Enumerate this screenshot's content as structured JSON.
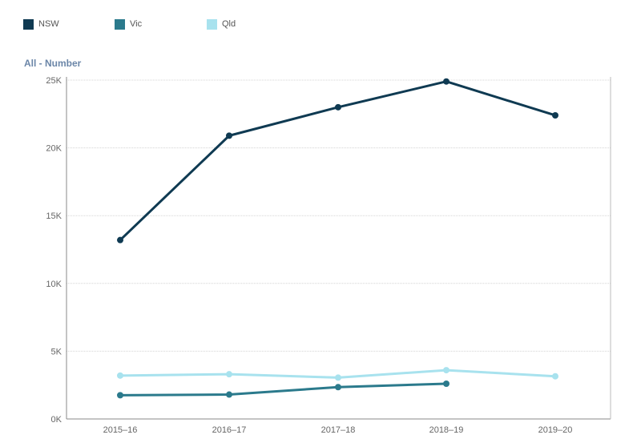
{
  "legend": [
    {
      "name": "NSW",
      "color": "#0f3a52"
    },
    {
      "name": "Vic",
      "color": "#2b7a8c"
    },
    {
      "name": "Qld",
      "color": "#a8e2ee"
    }
  ],
  "chart_data": {
    "type": "line",
    "title": "",
    "ylabel": "All - Number",
    "xlabel": "",
    "categories": [
      "2015–16",
      "2016–17",
      "2017–18",
      "2018–19",
      "2019–20"
    ],
    "ylim": [
      0,
      25000
    ],
    "yticks": [
      {
        "value": 0,
        "label": "0K"
      },
      {
        "value": 5000,
        "label": "5K"
      },
      {
        "value": 10000,
        "label": "10K"
      },
      {
        "value": 15000,
        "label": "15K"
      },
      {
        "value": 20000,
        "label": "20K"
      },
      {
        "value": 25000,
        "label": "25K"
      }
    ],
    "grid": true,
    "legend_position": "top-left",
    "series": [
      {
        "name": "NSW",
        "color": "#0f3a52",
        "values": [
          13200,
          20900,
          23000,
          24900,
          22400
        ]
      },
      {
        "name": "Vic",
        "color": "#2b7a8c",
        "values": [
          1750,
          1800,
          2350,
          2600,
          null
        ]
      },
      {
        "name": "Qld",
        "color": "#a8e2ee",
        "values": [
          3200,
          3300,
          3050,
          3600,
          3150
        ]
      }
    ]
  }
}
